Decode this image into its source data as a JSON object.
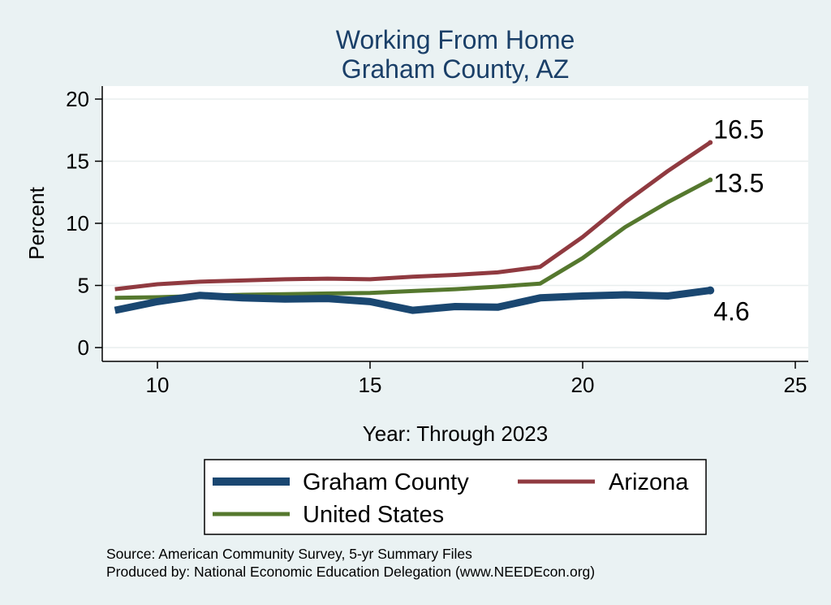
{
  "chart_data": {
    "type": "line",
    "title": "Working From Home",
    "subtitle": "Graham County, AZ",
    "xlabel": "Year: Through 2023",
    "ylabel": "Percent",
    "xlim": [
      9,
      25
    ],
    "ylim": [
      0,
      20
    ],
    "x_ticks": [
      "10",
      "15",
      "20",
      "25"
    ],
    "y_ticks": [
      "0",
      "5",
      "10",
      "15",
      "20"
    ],
    "grid": true,
    "legend_position": "bottom",
    "x": [
      9,
      10,
      11,
      12,
      13,
      14,
      15,
      16,
      17,
      18,
      19,
      20,
      21,
      22,
      23
    ],
    "series": [
      {
        "name": "Graham County",
        "color": "#1a4771",
        "values": [
          3.0,
          3.7,
          4.2,
          4.0,
          3.9,
          3.95,
          3.7,
          3.0,
          3.3,
          3.25,
          4.0,
          4.15,
          4.25,
          4.15,
          4.6
        ],
        "end_label": "4.6"
      },
      {
        "name": "Arizona",
        "color": "#903a40",
        "values": [
          4.7,
          5.1,
          5.3,
          5.4,
          5.5,
          5.55,
          5.5,
          5.7,
          5.85,
          6.05,
          6.5,
          8.9,
          11.7,
          14.2,
          16.5
        ],
        "end_label": "16.5"
      },
      {
        "name": "United States",
        "color": "#55782e",
        "values": [
          4.0,
          4.05,
          4.15,
          4.25,
          4.3,
          4.35,
          4.4,
          4.55,
          4.7,
          4.9,
          5.15,
          7.2,
          9.7,
          11.7,
          13.5
        ],
        "end_label": "13.5"
      }
    ],
    "source": "Source: American Community Survey, 5-yr Summary Files",
    "produced_by": "Produced by: National Economic Education Delegation (www.NEEDEcon.org)"
  }
}
